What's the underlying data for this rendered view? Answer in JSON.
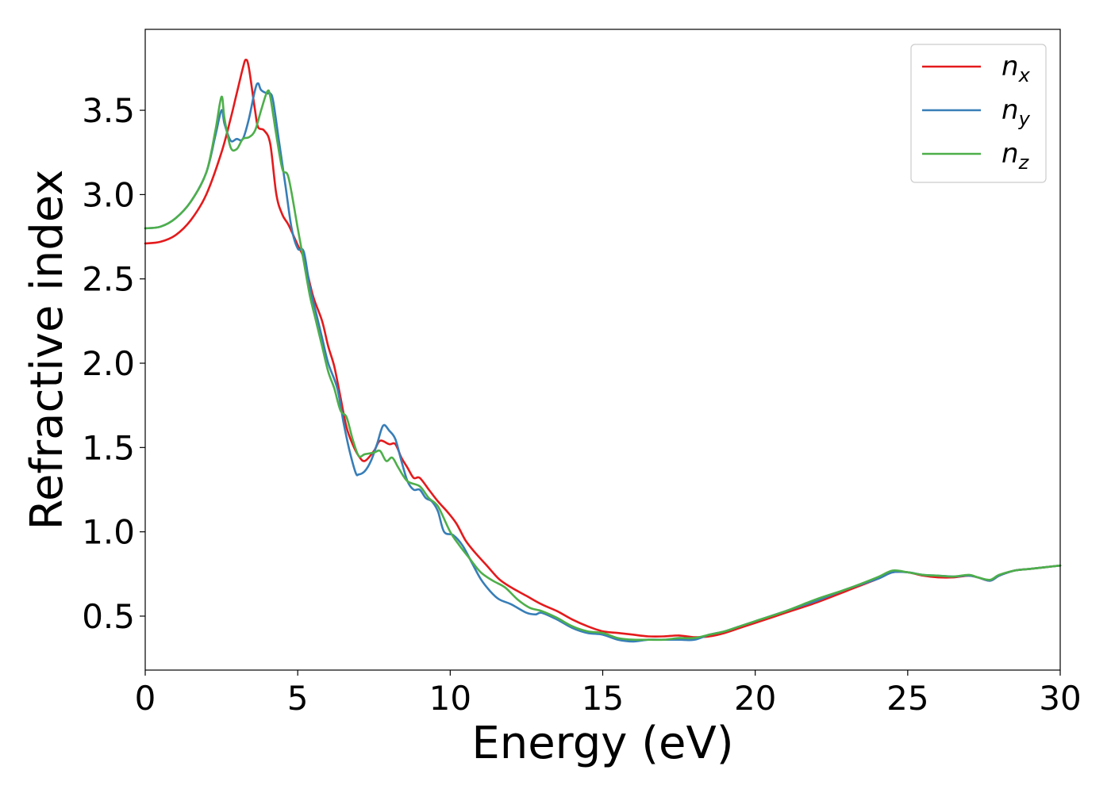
{
  "chart_data": {
    "type": "line",
    "xlabel": "Energy (eV)",
    "ylabel": "Refractive index",
    "xlim": [
      0,
      30
    ],
    "ylim": [
      0.18,
      3.98
    ],
    "xticks": [
      0,
      5,
      10,
      15,
      20,
      25,
      30
    ],
    "xtick_labels": [
      "0",
      "5",
      "10",
      "15",
      "20",
      "25",
      "30"
    ],
    "yticks": [
      0.5,
      1.0,
      1.5,
      2.0,
      2.5,
      3.0,
      3.5
    ],
    "ytick_labels": [
      "0.5",
      "1.0",
      "1.5",
      "2.0",
      "2.5",
      "3.0",
      "3.5"
    ],
    "grid": false,
    "legend_position": "top-right",
    "series": [
      {
        "name": "n",
        "subscript": "x",
        "color": "#e41a1c",
        "points": [
          [
            0,
            2.71
          ],
          [
            0.5,
            2.72
          ],
          [
            1,
            2.76
          ],
          [
            1.5,
            2.85
          ],
          [
            2,
            3.0
          ],
          [
            2.5,
            3.25
          ],
          [
            2.8,
            3.45
          ],
          [
            3.0,
            3.6
          ],
          [
            3.2,
            3.75
          ],
          [
            3.3,
            3.8
          ],
          [
            3.4,
            3.75
          ],
          [
            3.6,
            3.5
          ],
          [
            3.7,
            3.4
          ],
          [
            3.9,
            3.38
          ],
          [
            4.1,
            3.3
          ],
          [
            4.3,
            3.0
          ],
          [
            4.5,
            2.88
          ],
          [
            4.7,
            2.82
          ],
          [
            5.0,
            2.7
          ],
          [
            5.2,
            2.62
          ],
          [
            5.5,
            2.4
          ],
          [
            5.8,
            2.25
          ],
          [
            6.0,
            2.1
          ],
          [
            6.2,
            1.98
          ],
          [
            6.4,
            1.8
          ],
          [
            6.6,
            1.62
          ],
          [
            6.8,
            1.52
          ],
          [
            7.0,
            1.45
          ],
          [
            7.2,
            1.42
          ],
          [
            7.5,
            1.48
          ],
          [
            7.7,
            1.54
          ],
          [
            8.0,
            1.52
          ],
          [
            8.2,
            1.52
          ],
          [
            8.4,
            1.44
          ],
          [
            8.6,
            1.38
          ],
          [
            8.8,
            1.32
          ],
          [
            9.0,
            1.32
          ],
          [
            9.3,
            1.25
          ],
          [
            9.6,
            1.18
          ],
          [
            9.9,
            1.12
          ],
          [
            10.2,
            1.05
          ],
          [
            10.5,
            0.95
          ],
          [
            10.8,
            0.88
          ],
          [
            11.2,
            0.8
          ],
          [
            11.6,
            0.72
          ],
          [
            12.0,
            0.67
          ],
          [
            12.5,
            0.62
          ],
          [
            13.0,
            0.57
          ],
          [
            13.5,
            0.53
          ],
          [
            14.0,
            0.48
          ],
          [
            14.5,
            0.44
          ],
          [
            15.0,
            0.41
          ],
          [
            15.5,
            0.4
          ],
          [
            16.0,
            0.39
          ],
          [
            16.5,
            0.38
          ],
          [
            17.0,
            0.38
          ],
          [
            17.5,
            0.385
          ],
          [
            18.0,
            0.375
          ],
          [
            18.5,
            0.38
          ],
          [
            19.0,
            0.4
          ],
          [
            19.5,
            0.43
          ],
          [
            20.0,
            0.46
          ],
          [
            21.0,
            0.52
          ],
          [
            22.0,
            0.58
          ],
          [
            23.0,
            0.65
          ],
          [
            24.0,
            0.72
          ],
          [
            24.5,
            0.76
          ],
          [
            25.0,
            0.76
          ],
          [
            25.5,
            0.74
          ],
          [
            26.0,
            0.73
          ],
          [
            26.5,
            0.73
          ],
          [
            27.0,
            0.74
          ],
          [
            27.3,
            0.73
          ],
          [
            27.7,
            0.71
          ],
          [
            28.0,
            0.74
          ],
          [
            28.5,
            0.77
          ],
          [
            29.0,
            0.78
          ],
          [
            29.5,
            0.79
          ],
          [
            30.0,
            0.8
          ]
        ]
      },
      {
        "name": "n",
        "subscript": "y",
        "color": "#377eb8",
        "points": [
          [
            0,
            2.8
          ],
          [
            0.5,
            2.81
          ],
          [
            1,
            2.86
          ],
          [
            1.5,
            2.96
          ],
          [
            2,
            3.13
          ],
          [
            2.3,
            3.35
          ],
          [
            2.5,
            3.5
          ],
          [
            2.6,
            3.42
          ],
          [
            2.8,
            3.32
          ],
          [
            3.0,
            3.33
          ],
          [
            3.2,
            3.33
          ],
          [
            3.4,
            3.45
          ],
          [
            3.6,
            3.62
          ],
          [
            3.7,
            3.66
          ],
          [
            3.8,
            3.62
          ],
          [
            4.0,
            3.6
          ],
          [
            4.1,
            3.6
          ],
          [
            4.2,
            3.55
          ],
          [
            4.4,
            3.3
          ],
          [
            4.6,
            3.05
          ],
          [
            4.8,
            2.8
          ],
          [
            5.0,
            2.68
          ],
          [
            5.2,
            2.66
          ],
          [
            5.4,
            2.45
          ],
          [
            5.6,
            2.3
          ],
          [
            5.8,
            2.15
          ],
          [
            6.0,
            2.0
          ],
          [
            6.3,
            1.85
          ],
          [
            6.5,
            1.65
          ],
          [
            6.7,
            1.48
          ],
          [
            6.9,
            1.35
          ],
          [
            7.0,
            1.34
          ],
          [
            7.2,
            1.36
          ],
          [
            7.4,
            1.42
          ],
          [
            7.6,
            1.52
          ],
          [
            7.8,
            1.63
          ],
          [
            8.0,
            1.6
          ],
          [
            8.2,
            1.55
          ],
          [
            8.4,
            1.42
          ],
          [
            8.6,
            1.3
          ],
          [
            8.8,
            1.25
          ],
          [
            9.0,
            1.25
          ],
          [
            9.2,
            1.2
          ],
          [
            9.4,
            1.18
          ],
          [
            9.6,
            1.12
          ],
          [
            9.8,
            1.0
          ],
          [
            10.1,
            0.98
          ],
          [
            10.4,
            0.92
          ],
          [
            10.7,
            0.82
          ],
          [
            11.0,
            0.72
          ],
          [
            11.3,
            0.65
          ],
          [
            11.6,
            0.6
          ],
          [
            12.0,
            0.57
          ],
          [
            12.5,
            0.52
          ],
          [
            12.8,
            0.51
          ],
          [
            13.0,
            0.52
          ],
          [
            13.5,
            0.48
          ],
          [
            14.0,
            0.43
          ],
          [
            14.5,
            0.4
          ],
          [
            15.0,
            0.39
          ],
          [
            15.5,
            0.36
          ],
          [
            16.0,
            0.35
          ],
          [
            16.5,
            0.36
          ],
          [
            17.0,
            0.36
          ],
          [
            17.5,
            0.36
          ],
          [
            18.0,
            0.36
          ],
          [
            18.5,
            0.39
          ],
          [
            19.0,
            0.41
          ],
          [
            19.5,
            0.44
          ],
          [
            20.0,
            0.47
          ],
          [
            21.0,
            0.53
          ],
          [
            22.0,
            0.59
          ],
          [
            23.0,
            0.66
          ],
          [
            24.0,
            0.72
          ],
          [
            24.5,
            0.76
          ],
          [
            25.0,
            0.76
          ],
          [
            25.5,
            0.745
          ],
          [
            26.0,
            0.74
          ],
          [
            26.5,
            0.735
          ],
          [
            27.0,
            0.74
          ],
          [
            27.3,
            0.73
          ],
          [
            27.7,
            0.71
          ],
          [
            28.0,
            0.74
          ],
          [
            28.5,
            0.77
          ],
          [
            29.0,
            0.78
          ],
          [
            29.5,
            0.79
          ],
          [
            30.0,
            0.8
          ]
        ]
      },
      {
        "name": "n",
        "subscript": "z",
        "color": "#4daf4a",
        "points": [
          [
            0,
            2.8
          ],
          [
            0.5,
            2.81
          ],
          [
            1,
            2.86
          ],
          [
            1.5,
            2.96
          ],
          [
            2,
            3.13
          ],
          [
            2.3,
            3.38
          ],
          [
            2.5,
            3.58
          ],
          [
            2.6,
            3.45
          ],
          [
            2.8,
            3.28
          ],
          [
            3.0,
            3.27
          ],
          [
            3.2,
            3.33
          ],
          [
            3.4,
            3.34
          ],
          [
            3.6,
            3.38
          ],
          [
            3.8,
            3.5
          ],
          [
            4.0,
            3.61
          ],
          [
            4.1,
            3.58
          ],
          [
            4.3,
            3.35
          ],
          [
            4.5,
            3.15
          ],
          [
            4.7,
            3.1
          ],
          [
            5.0,
            2.8
          ],
          [
            5.2,
            2.6
          ],
          [
            5.4,
            2.4
          ],
          [
            5.6,
            2.25
          ],
          [
            5.8,
            2.1
          ],
          [
            6.0,
            1.95
          ],
          [
            6.2,
            1.85
          ],
          [
            6.4,
            1.72
          ],
          [
            6.6,
            1.68
          ],
          [
            6.8,
            1.55
          ],
          [
            7.0,
            1.45
          ],
          [
            7.2,
            1.46
          ],
          [
            7.5,
            1.47
          ],
          [
            7.7,
            1.48
          ],
          [
            7.9,
            1.42
          ],
          [
            8.1,
            1.44
          ],
          [
            8.3,
            1.38
          ],
          [
            8.6,
            1.3
          ],
          [
            9.0,
            1.27
          ],
          [
            9.3,
            1.2
          ],
          [
            9.6,
            1.15
          ],
          [
            10.0,
            1.0
          ],
          [
            10.3,
            0.92
          ],
          [
            10.6,
            0.85
          ],
          [
            11.0,
            0.76
          ],
          [
            11.4,
            0.71
          ],
          [
            11.8,
            0.67
          ],
          [
            12.2,
            0.6
          ],
          [
            12.6,
            0.55
          ],
          [
            13.0,
            0.53
          ],
          [
            13.5,
            0.49
          ],
          [
            14.0,
            0.44
          ],
          [
            14.5,
            0.41
          ],
          [
            15.0,
            0.4
          ],
          [
            15.5,
            0.37
          ],
          [
            16.0,
            0.36
          ],
          [
            16.5,
            0.36
          ],
          [
            17.0,
            0.36
          ],
          [
            17.5,
            0.37
          ],
          [
            18.0,
            0.37
          ],
          [
            18.5,
            0.39
          ],
          [
            19.0,
            0.41
          ],
          [
            19.5,
            0.44
          ],
          [
            20.0,
            0.47
          ],
          [
            21.0,
            0.53
          ],
          [
            22.0,
            0.6
          ],
          [
            23.0,
            0.66
          ],
          [
            24.0,
            0.73
          ],
          [
            24.5,
            0.77
          ],
          [
            25.0,
            0.76
          ],
          [
            25.5,
            0.745
          ],
          [
            26.0,
            0.74
          ],
          [
            26.5,
            0.735
          ],
          [
            27.0,
            0.745
          ],
          [
            27.3,
            0.73
          ],
          [
            27.7,
            0.715
          ],
          [
            28.0,
            0.745
          ],
          [
            28.5,
            0.77
          ],
          [
            29.0,
            0.78
          ],
          [
            29.5,
            0.79
          ],
          [
            30.0,
            0.8
          ]
        ]
      }
    ]
  }
}
